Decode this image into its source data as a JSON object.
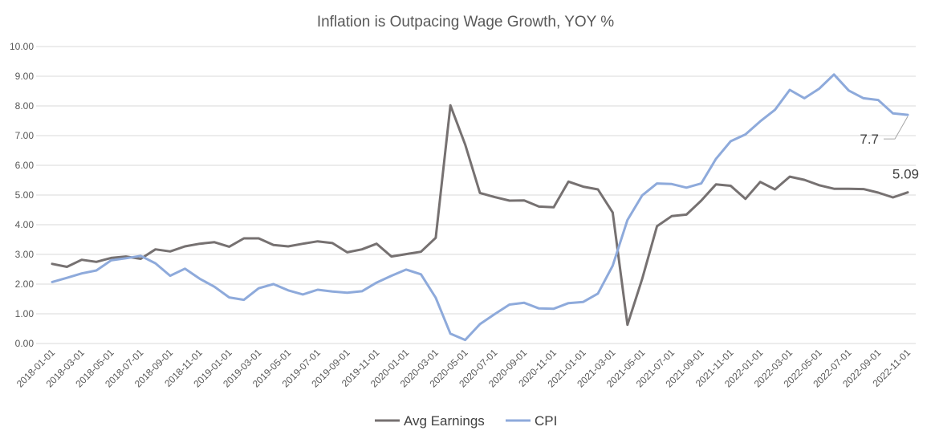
{
  "chart_data": {
    "type": "line",
    "title": "Inflation is Outpacing Wage Growth, YOY %",
    "xlabel": "",
    "ylabel": "",
    "ylim": [
      0,
      10
    ],
    "yticks": [
      "0.00",
      "1.00",
      "2.00",
      "3.00",
      "4.00",
      "5.00",
      "6.00",
      "7.00",
      "8.00",
      "9.00",
      "10.00"
    ],
    "x": [
      "2018-01-01",
      "2018-02-01",
      "2018-03-01",
      "2018-04-01",
      "2018-05-01",
      "2018-06-01",
      "2018-07-01",
      "2018-08-01",
      "2018-09-01",
      "2018-10-01",
      "2018-11-01",
      "2018-12-01",
      "2019-01-01",
      "2019-02-01",
      "2019-03-01",
      "2019-04-01",
      "2019-05-01",
      "2019-06-01",
      "2019-07-01",
      "2019-08-01",
      "2019-09-01",
      "2019-10-01",
      "2019-11-01",
      "2019-12-01",
      "2020-01-01",
      "2020-02-01",
      "2020-03-01",
      "2020-04-01",
      "2020-05-01",
      "2020-06-01",
      "2020-07-01",
      "2020-08-01",
      "2020-09-01",
      "2020-10-01",
      "2020-11-01",
      "2020-12-01",
      "2021-01-01",
      "2021-02-01",
      "2021-03-01",
      "2021-04-01",
      "2021-05-01",
      "2021-06-01",
      "2021-07-01",
      "2021-08-01",
      "2021-09-01",
      "2021-10-01",
      "2021-11-01",
      "2021-12-01",
      "2022-01-01",
      "2022-02-01",
      "2022-03-01",
      "2022-04-01",
      "2022-05-01",
      "2022-06-01",
      "2022-07-01",
      "2022-08-01",
      "2022-09-01",
      "2022-10-01",
      "2022-11-01"
    ],
    "xticks": [
      "2018-01-01",
      "2018-03-01",
      "2018-05-01",
      "2018-07-01",
      "2018-09-01",
      "2018-11-01",
      "2019-01-01",
      "2019-03-01",
      "2019-05-01",
      "2019-07-01",
      "2019-09-01",
      "2019-11-01",
      "2020-01-01",
      "2020-03-01",
      "2020-05-01",
      "2020-07-01",
      "2020-09-01",
      "2020-11-01",
      "2021-01-01",
      "2021-03-01",
      "2021-05-01",
      "2021-07-01",
      "2021-09-01",
      "2021-11-01",
      "2022-01-01",
      "2022-03-01",
      "2022-05-01",
      "2022-07-01",
      "2022-09-01",
      "2022-11-01"
    ],
    "series": [
      {
        "name": "Avg Earnings",
        "color": "#767171",
        "values": [
          2.68,
          2.58,
          2.82,
          2.75,
          2.88,
          2.93,
          2.85,
          3.17,
          3.1,
          3.27,
          3.36,
          3.41,
          3.26,
          3.54,
          3.54,
          3.32,
          3.27,
          3.36,
          3.44,
          3.38,
          3.07,
          3.17,
          3.36,
          2.93,
          3.01,
          3.09,
          3.56,
          8.02,
          6.7,
          5.07,
          4.93,
          4.81,
          4.82,
          4.61,
          4.59,
          5.45,
          5.28,
          5.19,
          4.41,
          0.63,
          2.18,
          3.95,
          4.29,
          4.34,
          4.81,
          5.36,
          5.31,
          4.87,
          5.44,
          5.19,
          5.62,
          5.51,
          5.33,
          5.21,
          5.21,
          5.2,
          5.08,
          4.92,
          5.09
        ]
      },
      {
        "name": "CPI",
        "color": "#8eaadb",
        "values": [
          2.07,
          2.21,
          2.36,
          2.46,
          2.8,
          2.87,
          2.95,
          2.7,
          2.28,
          2.52,
          2.18,
          1.91,
          1.55,
          1.47,
          1.86,
          2.0,
          1.79,
          1.65,
          1.81,
          1.75,
          1.71,
          1.76,
          2.05,
          2.28,
          2.49,
          2.33,
          1.54,
          0.33,
          0.12,
          0.65,
          0.99,
          1.31,
          1.37,
          1.18,
          1.17,
          1.36,
          1.4,
          1.68,
          2.62,
          4.16,
          4.99,
          5.39,
          5.37,
          5.25,
          5.39,
          6.22,
          6.81,
          7.04,
          7.48,
          7.87,
          8.54,
          8.26,
          8.58,
          9.06,
          8.52,
          8.26,
          8.2,
          7.75,
          7.7
        ]
      }
    ],
    "annotations": [
      {
        "text": "7.7",
        "series": "CPI",
        "index": 57
      },
      {
        "text": "5.09",
        "series": "Avg Earnings",
        "index": 58
      }
    ],
    "grid": true,
    "legend": "bottom"
  }
}
